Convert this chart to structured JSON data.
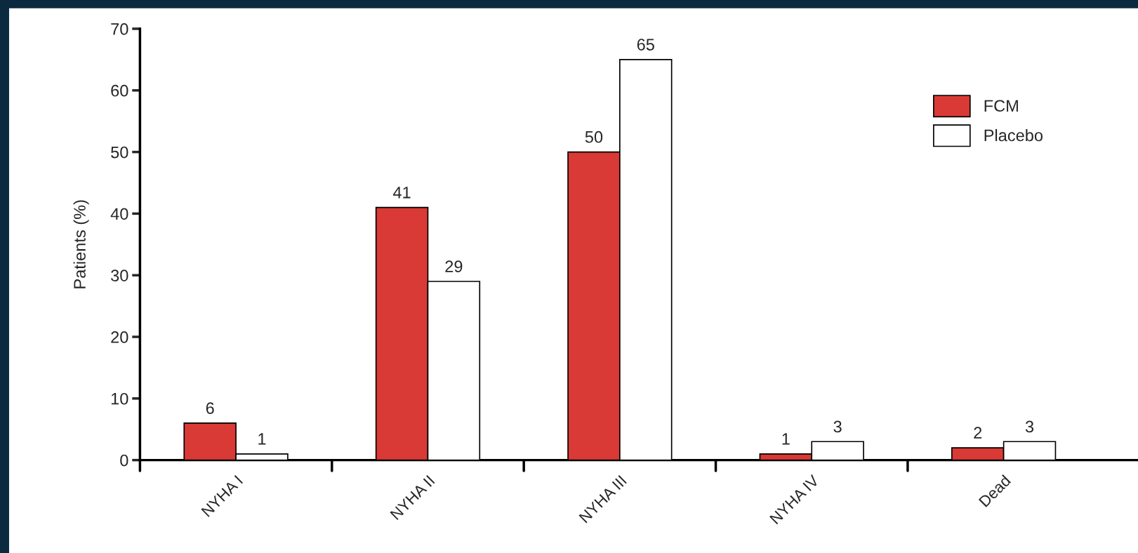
{
  "chart_data": {
    "type": "bar",
    "ylabel": "Patients (%)",
    "categories": [
      "NYHA I",
      "NYHA II",
      "NYHA III",
      "NYHA IV",
      "Dead"
    ],
    "series": [
      {
        "name": "FCM",
        "color": "#d93a35",
        "values": [
          6,
          41,
          50,
          1,
          2
        ]
      },
      {
        "name": "Placebo",
        "color": "#ffffff",
        "values": [
          1,
          29,
          65,
          3,
          3
        ]
      }
    ],
    "ylim": [
      0,
      70
    ],
    "yticks": [
      0,
      10,
      20,
      30,
      40,
      50,
      60,
      70
    ],
    "grid": false,
    "legend": "top right",
    "data_labels": true
  }
}
